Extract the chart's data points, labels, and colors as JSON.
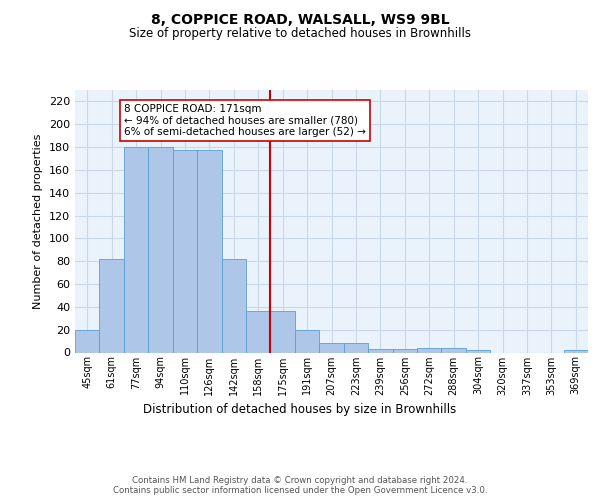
{
  "title1": "8, COPPICE ROAD, WALSALL, WS9 9BL",
  "title2": "Size of property relative to detached houses in Brownhills",
  "xlabel": "Distribution of detached houses by size in Brownhills",
  "ylabel": "Number of detached properties",
  "bar_labels": [
    "45sqm",
    "61sqm",
    "77sqm",
    "94sqm",
    "110sqm",
    "126sqm",
    "142sqm",
    "158sqm",
    "175sqm",
    "191sqm",
    "207sqm",
    "223sqm",
    "239sqm",
    "256sqm",
    "272sqm",
    "288sqm",
    "304sqm",
    "320sqm",
    "337sqm",
    "353sqm",
    "369sqm"
  ],
  "bar_values": [
    20,
    82,
    180,
    180,
    177,
    177,
    82,
    36,
    36,
    20,
    8,
    8,
    3,
    3,
    4,
    4,
    2,
    0,
    0,
    0,
    2
  ],
  "bar_color": "#aec6e8",
  "bar_edge_color": "#5a9fd4",
  "grid_color": "#c8d8e8",
  "background_color": "#eaf2fb",
  "vline_x_index": 8,
  "vline_color": "#cc0000",
  "annotation_text": "8 COPPICE ROAD: 171sqm\n← 94% of detached houses are smaller (780)\n6% of semi-detached houses are larger (52) →",
  "annotation_box_color": "#ffffff",
  "annotation_box_edge_color": "#cc0000",
  "ylim": [
    0,
    230
  ],
  "yticks": [
    0,
    20,
    40,
    60,
    80,
    100,
    120,
    140,
    160,
    180,
    200,
    220
  ],
  "footer": "Contains HM Land Registry data © Crown copyright and database right 2024.\nContains public sector information licensed under the Open Government Licence v3.0."
}
